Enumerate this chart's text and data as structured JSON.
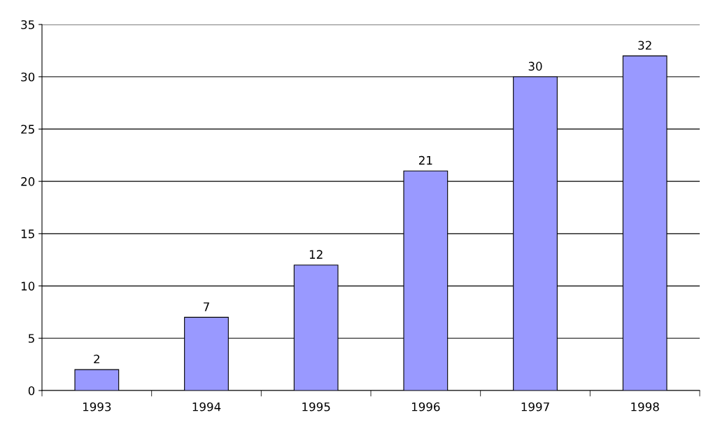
{
  "chart_data": {
    "type": "bar",
    "categories": [
      "1993",
      "1994",
      "1995",
      "1996",
      "1997",
      "1998"
    ],
    "values": [
      2,
      7,
      12,
      21,
      30,
      32
    ],
    "color": "#9999ff",
    "ylim": [
      0,
      35
    ],
    "yticks": [
      0,
      5,
      10,
      15,
      20,
      25,
      30,
      35
    ],
    "grid": "y",
    "data_labels": true,
    "legend": false
  }
}
